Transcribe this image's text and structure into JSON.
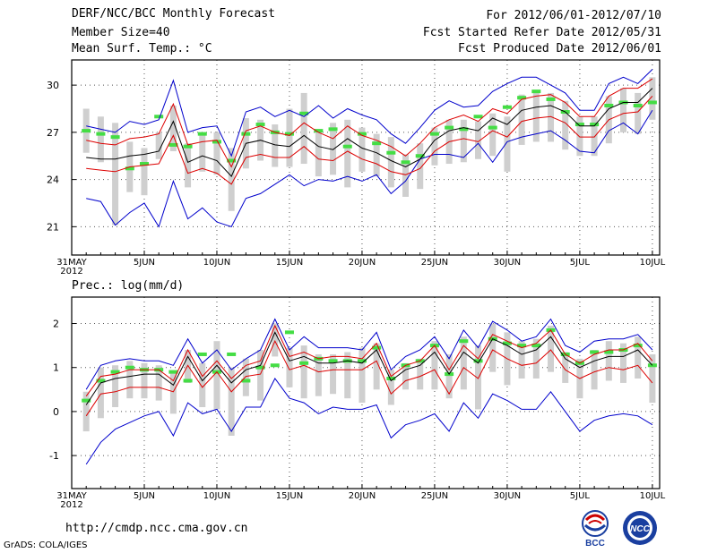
{
  "header": {
    "title": "DERF/NCC/BCC Monthly Forecast",
    "member_size": "Member Size=40",
    "variable1": "Mean Surf. Temp.: °C",
    "period": "For 2012/06/01-2012/07/10",
    "start_date": "Fcst Started Refer Date 2012/05/31",
    "produced_date": "Fcst Produced Date 2012/06/01"
  },
  "footer": {
    "url": "http://cmdp.ncc.cma.gov.cn",
    "credit": "GrADS: COLA/IGES",
    "logo_bcc": "BCC",
    "logo_ncc": "NCC"
  },
  "colors": {
    "range_line": "#0000cc",
    "spread_line": "#dd0000",
    "mean_line": "#000000",
    "box": "#cfcfcf",
    "marker": "#44dd44",
    "grid": "#555555"
  },
  "chart_data": [
    {
      "type": "line",
      "title": "Mean Surf. Temp.: °C",
      "xlabel": "",
      "ylabel": "°C",
      "ylim": [
        19.2,
        31.6
      ],
      "yticks": [
        21,
        24,
        27,
        30
      ],
      "xticks": [
        {
          "day": 0,
          "label": "31MAY",
          "label2": "2012"
        },
        {
          "day": 5,
          "label": "5JUN"
        },
        {
          "day": 10,
          "label": "10JUN"
        },
        {
          "day": 15,
          "label": "15JUN"
        },
        {
          "day": 20,
          "label": "20JUN"
        },
        {
          "day": 25,
          "label": "25JUN"
        },
        {
          "day": 30,
          "label": "30JUN"
        },
        {
          "day": 35,
          "label": "5JUL"
        },
        {
          "day": 40,
          "label": "10JUL"
        }
      ],
      "days": [
        1,
        2,
        3,
        4,
        5,
        6,
        7,
        8,
        9,
        10,
        11,
        12,
        13,
        14,
        15,
        16,
        17,
        18,
        19,
        20,
        21,
        22,
        23,
        24,
        25,
        26,
        27,
        28,
        29,
        30,
        31,
        32,
        33,
        34,
        35,
        36,
        37,
        38,
        39,
        40
      ],
      "series": [
        {
          "name": "ensemble max",
          "role": "range",
          "values": [
            27.4,
            27.2,
            27.0,
            27.7,
            27.5,
            27.8,
            30.3,
            27.0,
            27.3,
            27.4,
            25.5,
            28.3,
            28.6,
            28.0,
            28.4,
            28.0,
            28.7,
            27.9,
            28.5,
            28.1,
            27.8,
            26.9,
            26.3,
            27.3,
            28.4,
            29.0,
            28.6,
            28.7,
            29.6,
            30.1,
            30.5,
            30.5,
            30.0,
            29.5,
            28.4,
            28.4,
            30.1,
            30.5,
            30.1,
            31.0
          ]
        },
        {
          "name": "ensemble min",
          "role": "range",
          "values": [
            22.8,
            22.6,
            21.1,
            21.9,
            22.5,
            21.0,
            23.9,
            21.5,
            22.2,
            21.3,
            21.0,
            22.8,
            23.1,
            23.7,
            24.3,
            23.6,
            24.0,
            23.9,
            24.2,
            23.9,
            24.3,
            23.1,
            23.9,
            25.3,
            25.6,
            25.6,
            25.4,
            26.3,
            25.1,
            26.4,
            26.7,
            26.9,
            27.1,
            26.5,
            25.8,
            25.7,
            27.1,
            27.6,
            26.9,
            28.4
          ]
        },
        {
          "name": "mean + spread",
          "role": "spread",
          "values": [
            26.5,
            26.3,
            26.2,
            26.6,
            26.7,
            26.9,
            28.8,
            26.2,
            26.4,
            26.5,
            24.8,
            27.1,
            27.4,
            27.0,
            26.8,
            27.6,
            27.0,
            26.6,
            27.4,
            26.8,
            26.5,
            26.1,
            25.5,
            26.3,
            27.3,
            27.8,
            28.1,
            27.7,
            28.5,
            28.2,
            29.1,
            29.3,
            29.4,
            28.9,
            28.0,
            28.0,
            29.3,
            29.8,
            29.8,
            30.4
          ]
        },
        {
          "name": "ensemble mean",
          "role": "mean",
          "values": [
            25.4,
            25.3,
            25.3,
            25.5,
            25.6,
            25.8,
            27.7,
            25.1,
            25.5,
            25.2,
            24.2,
            26.3,
            26.5,
            26.2,
            26.1,
            26.8,
            26.1,
            25.9,
            26.6,
            26.0,
            25.7,
            25.2,
            24.8,
            25.3,
            26.5,
            27.1,
            27.3,
            27.1,
            27.9,
            27.5,
            28.4,
            28.6,
            28.7,
            28.3,
            27.4,
            27.4,
            28.5,
            28.9,
            28.9,
            29.8
          ]
        },
        {
          "name": "mean - spread",
          "role": "spread",
          "values": [
            24.7,
            24.6,
            24.5,
            24.8,
            24.9,
            25.0,
            26.8,
            24.4,
            24.7,
            24.4,
            23.7,
            25.4,
            25.6,
            25.4,
            25.4,
            26.1,
            25.3,
            25.2,
            25.8,
            25.3,
            25.0,
            24.5,
            24.3,
            24.7,
            25.8,
            26.4,
            26.6,
            26.4,
            27.1,
            26.7,
            27.7,
            27.9,
            28.0,
            27.6,
            26.7,
            26.7,
            27.8,
            28.2,
            28.3,
            29.3
          ]
        }
      ],
      "boxes": [
        {
          "low": 25.7,
          "high": 28.5
        },
        {
          "low": 25.1,
          "high": 28.0
        },
        {
          "low": 21.1,
          "high": 27.6
        },
        {
          "low": 23.2,
          "high": 26.4
        },
        {
          "low": 23.0,
          "high": 26.0
        },
        {
          "low": 25.3,
          "high": 27.0
        },
        {
          "low": 25.8,
          "high": 28.7
        },
        {
          "low": 23.5,
          "high": 26.3
        },
        {
          "low": 24.5,
          "high": 27.0
        },
        {
          "low": 24.3,
          "high": 27.0
        },
        {
          "low": 22.0,
          "high": 26.0
        },
        {
          "low": 24.7,
          "high": 27.9
        },
        {
          "low": 25.2,
          "high": 27.8
        },
        {
          "low": 24.8,
          "high": 27.5
        },
        {
          "low": 24.8,
          "high": 28.5
        },
        {
          "low": 25.0,
          "high": 29.5
        },
        {
          "low": 24.2,
          "high": 27.2
        },
        {
          "low": 24.3,
          "high": 27.6
        },
        {
          "low": 23.5,
          "high": 27.8
        },
        {
          "low": 24.5,
          "high": 27.3
        },
        {
          "low": 24.2,
          "high": 26.9
        },
        {
          "low": 23.5,
          "high": 26.7
        },
        {
          "low": 22.9,
          "high": 25.6
        },
        {
          "low": 23.4,
          "high": 26.3
        },
        {
          "low": 24.9,
          "high": 27.3
        },
        {
          "low": 25.0,
          "high": 27.8
        },
        {
          "low": 25.1,
          "high": 27.8
        },
        {
          "low": 25.3,
          "high": 27.7
        },
        {
          "low": 25.5,
          "high": 28.2
        },
        {
          "low": 24.5,
          "high": 28.0
        },
        {
          "low": 26.2,
          "high": 29.4
        },
        {
          "low": 26.4,
          "high": 29.5
        },
        {
          "low": 26.4,
          "high": 29.5
        },
        {
          "low": 25.9,
          "high": 29.0
        },
        {
          "low": 25.5,
          "high": 28.0
        },
        {
          "low": 25.5,
          "high": 28.0
        },
        {
          "low": 26.3,
          "high": 29.3
        },
        {
          "low": 27.0,
          "high": 29.8
        },
        {
          "low": 26.9,
          "high": 29.5
        },
        {
          "low": 27.8,
          "high": 30.5
        }
      ],
      "markers": [
        27.1,
        26.9,
        26.7,
        24.7,
        25.0,
        28.0,
        26.2,
        26.1,
        26.9,
        26.4,
        25.2,
        26.9,
        27.5,
        27.0,
        26.9,
        28.2,
        27.1,
        27.2,
        26.1,
        26.9,
        26.3,
        25.7,
        25.1,
        25.5,
        26.9,
        27.3,
        27.2,
        28.0,
        27.3,
        28.6,
        29.2,
        29.6,
        29.1,
        28.3,
        27.5,
        27.5,
        28.7,
        28.9,
        28.7,
        28.9
      ]
    },
    {
      "type": "line",
      "title": "Prec.: log(mm/d)",
      "xlabel": "",
      "ylabel": "log(mm/d)",
      "ylim": [
        -1.75,
        2.6
      ],
      "yticks": [
        -1,
        0,
        1,
        2
      ],
      "xticks": [
        {
          "day": 0,
          "label": "31MAY",
          "label2": "2012"
        },
        {
          "day": 5,
          "label": "5JUN"
        },
        {
          "day": 10,
          "label": "10JUN"
        },
        {
          "day": 15,
          "label": "15JUN"
        },
        {
          "day": 20,
          "label": "20JUN"
        },
        {
          "day": 25,
          "label": "25JUN"
        },
        {
          "day": 30,
          "label": "30JUN"
        },
        {
          "day": 35,
          "label": "5JUL"
        },
        {
          "day": 40,
          "label": "10JUL"
        }
      ],
      "days": [
        1,
        2,
        3,
        4,
        5,
        6,
        7,
        8,
        9,
        10,
        11,
        12,
        13,
        14,
        15,
        16,
        17,
        18,
        19,
        20,
        21,
        22,
        23,
        24,
        25,
        26,
        27,
        28,
        29,
        30,
        31,
        32,
        33,
        34,
        35,
        36,
        37,
        38,
        39,
        40
      ],
      "series": [
        {
          "name": "ensemble max",
          "role": "range",
          "values": [
            0.5,
            1.05,
            1.15,
            1.2,
            1.15,
            1.15,
            1.05,
            1.65,
            1.1,
            1.4,
            0.95,
            1.2,
            1.4,
            2.1,
            1.4,
            1.7,
            1.45,
            1.45,
            1.45,
            1.4,
            1.8,
            0.95,
            1.25,
            1.4,
            1.7,
            1.2,
            1.85,
            1.45,
            2.05,
            1.85,
            1.6,
            1.7,
            2.1,
            1.5,
            1.35,
            1.6,
            1.65,
            1.65,
            1.75,
            1.4
          ]
        },
        {
          "name": "ensemble min",
          "role": "range",
          "values": [
            -1.2,
            -0.7,
            -0.4,
            -0.25,
            -0.1,
            0.0,
            -0.55,
            0.2,
            -0.05,
            0.05,
            -0.45,
            0.1,
            0.1,
            0.75,
            0.3,
            0.2,
            -0.05,
            0.1,
            0.05,
            0.05,
            0.15,
            -0.6,
            -0.3,
            -0.2,
            -0.05,
            -0.45,
            0.2,
            -0.15,
            0.4,
            0.25,
            0.05,
            0.05,
            0.45,
            0.0,
            -0.45,
            -0.2,
            -0.1,
            -0.05,
            -0.1,
            -0.3
          ]
        },
        {
          "name": "mean + spread",
          "role": "spread",
          "values": [
            0.35,
            0.8,
            0.85,
            0.95,
            0.95,
            0.95,
            0.7,
            1.4,
            0.8,
            1.15,
            0.75,
            1.05,
            1.15,
            1.95,
            1.25,
            1.35,
            1.2,
            1.25,
            1.25,
            1.2,
            1.55,
            0.8,
            1.05,
            1.15,
            1.5,
            0.95,
            1.5,
            1.2,
            1.75,
            1.6,
            1.45,
            1.55,
            1.85,
            1.3,
            1.1,
            1.3,
            1.4,
            1.4,
            1.55,
            1.15
          ]
        },
        {
          "name": "ensemble mean",
          "role": "mean",
          "values": [
            0.15,
            0.65,
            0.75,
            0.8,
            0.85,
            0.85,
            0.6,
            1.25,
            0.7,
            1.05,
            0.65,
            0.95,
            1.05,
            1.8,
            1.15,
            1.25,
            1.1,
            1.1,
            1.15,
            1.1,
            1.4,
            0.7,
            0.95,
            1.05,
            1.35,
            0.85,
            1.35,
            1.1,
            1.65,
            1.5,
            1.3,
            1.4,
            1.7,
            1.2,
            1.0,
            1.15,
            1.25,
            1.25,
            1.4,
            1.05
          ]
        },
        {
          "name": "mean - spread",
          "role": "spread",
          "values": [
            -0.1,
            0.4,
            0.45,
            0.55,
            0.55,
            0.55,
            0.45,
            1.05,
            0.55,
            0.9,
            0.45,
            0.8,
            0.85,
            1.6,
            0.95,
            1.05,
            0.9,
            0.95,
            0.95,
            0.95,
            1.15,
            0.4,
            0.7,
            0.8,
            0.95,
            0.4,
            1.0,
            0.75,
            1.4,
            1.2,
            1.05,
            1.1,
            1.4,
            0.95,
            0.75,
            0.9,
            1.0,
            0.95,
            1.05,
            0.65
          ]
        }
      ],
      "boxes": [
        {
          "low": -0.45,
          "high": 0.45
        },
        {
          "low": -0.15,
          "high": 1.0
        },
        {
          "low": 0.1,
          "high": 1.05
        },
        {
          "low": 0.3,
          "high": 1.15
        },
        {
          "low": 0.3,
          "high": 1.1
        },
        {
          "low": 0.25,
          "high": 1.05
        },
        {
          "low": -0.05,
          "high": 0.9
        },
        {
          "low": 0.65,
          "high": 1.4
        },
        {
          "low": 0.1,
          "high": 1.1
        },
        {
          "low": 0.05,
          "high": 1.6
        },
        {
          "low": -0.55,
          "high": 1.0
        },
        {
          "low": 0.35,
          "high": 1.2
        },
        {
          "low": 0.25,
          "high": 1.4
        },
        {
          "low": 1.25,
          "high": 2.0
        },
        {
          "low": 0.55,
          "high": 1.45
        },
        {
          "low": 0.3,
          "high": 1.5
        },
        {
          "low": 0.35,
          "high": 1.3
        },
        {
          "low": 0.4,
          "high": 1.3
        },
        {
          "low": 0.3,
          "high": 1.35
        },
        {
          "low": 0.2,
          "high": 1.45
        },
        {
          "low": 0.5,
          "high": 1.55
        },
        {
          "low": 0.15,
          "high": 0.95
        },
        {
          "low": 0.5,
          "high": 1.1
        },
        {
          "low": 0.5,
          "high": 1.2
        },
        {
          "low": 0.5,
          "high": 1.6
        },
        {
          "low": 0.3,
          "high": 1.3
        },
        {
          "low": 0.5,
          "high": 1.7
        },
        {
          "low": 0.05,
          "high": 1.5
        },
        {
          "low": 0.9,
          "high": 2.0
        },
        {
          "low": 0.6,
          "high": 1.8
        },
        {
          "low": 0.75,
          "high": 1.6
        },
        {
          "low": 0.75,
          "high": 1.65
        },
        {
          "low": 0.9,
          "high": 1.95
        },
        {
          "low": 0.65,
          "high": 1.35
        },
        {
          "low": 0.3,
          "high": 1.2
        },
        {
          "low": 0.5,
          "high": 1.4
        },
        {
          "low": 0.7,
          "high": 1.6
        },
        {
          "low": 0.65,
          "high": 1.55
        },
        {
          "low": 0.75,
          "high": 1.7
        },
        {
          "low": 0.2,
          "high": 1.3
        }
      ],
      "markers": [
        0.25,
        0.7,
        0.9,
        1.0,
        0.95,
        0.95,
        0.9,
        0.7,
        1.3,
        0.9,
        1.3,
        0.7,
        1.0,
        1.05,
        1.8,
        1.1,
        1.2,
        1.15,
        1.15,
        1.15,
        1.45,
        0.75,
        1.05,
        1.15,
        1.5,
        0.85,
        1.6,
        1.15,
        1.65,
        1.55,
        1.5,
        1.5,
        1.85,
        1.3,
        1.1,
        1.35,
        1.35,
        1.4,
        1.5,
        1.05
      ]
    }
  ]
}
